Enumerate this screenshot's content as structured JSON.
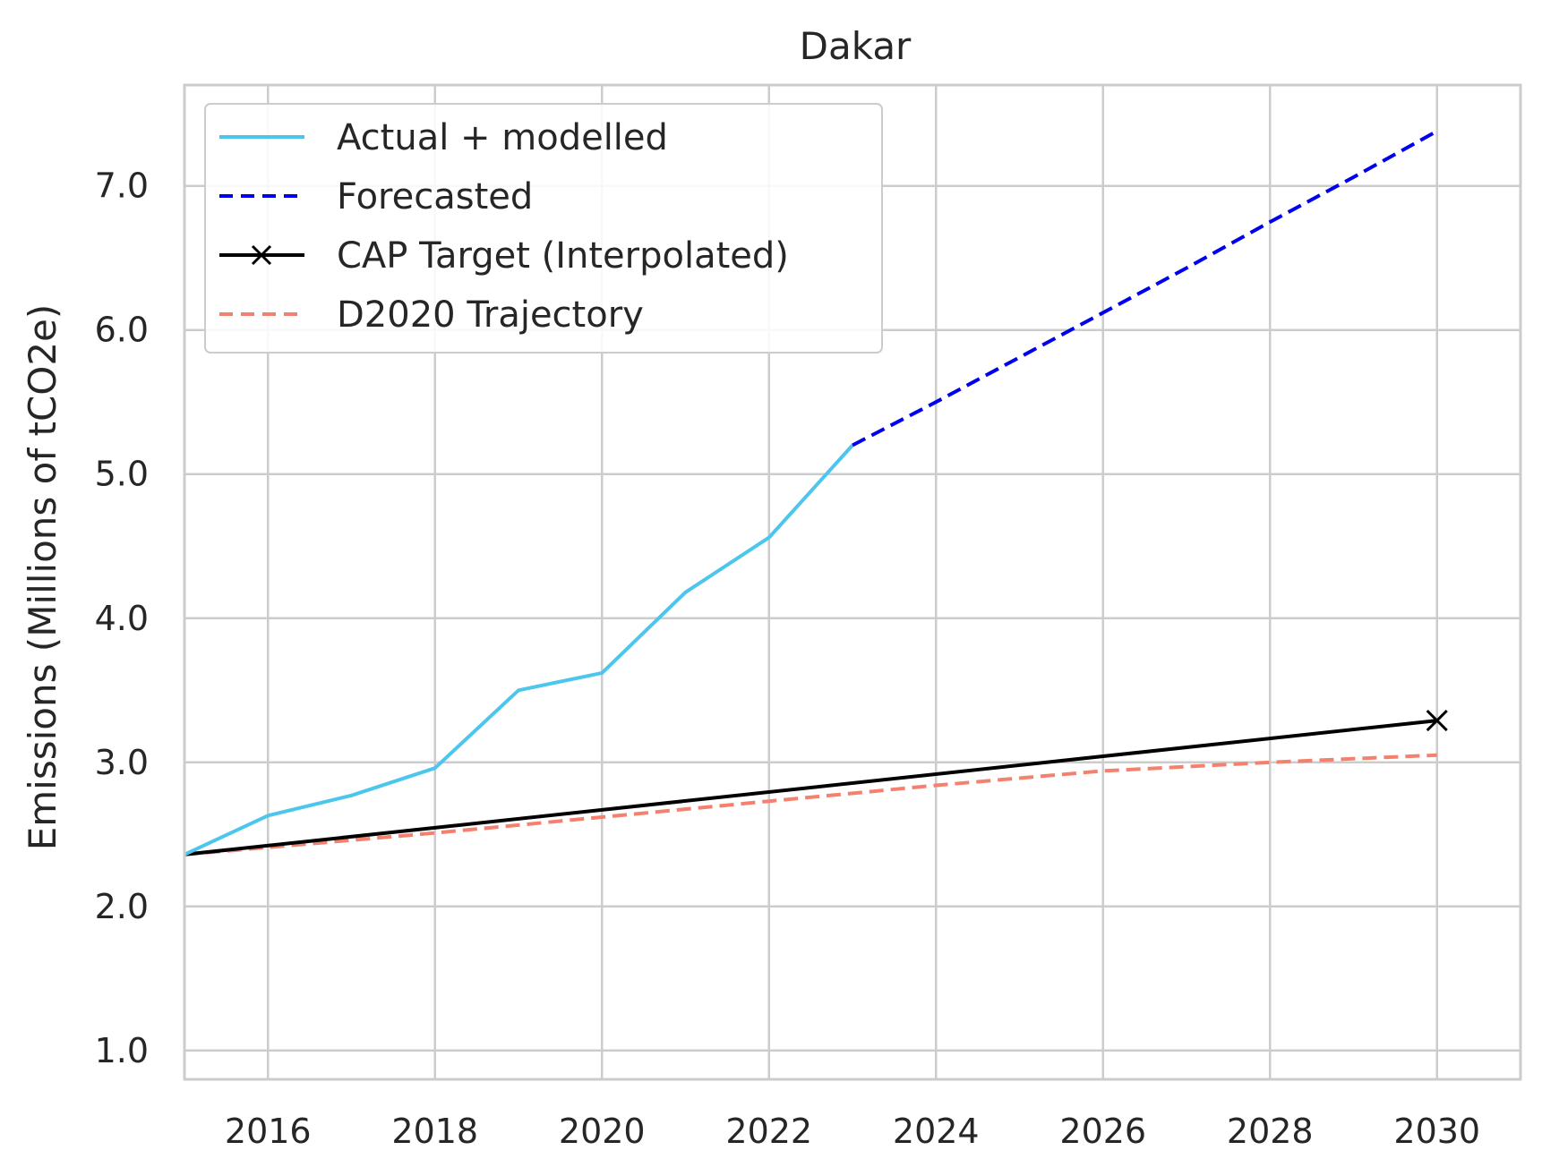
{
  "chart_data": {
    "type": "line",
    "title": "Dakar",
    "xlabel": "",
    "ylabel": "Emissions (Millions of tCO2e)",
    "xlim": [
      2015,
      2031
    ],
    "ylim": [
      0.8,
      7.7
    ],
    "xticks": [
      2016,
      2018,
      2020,
      2022,
      2024,
      2026,
      2028,
      2030
    ],
    "yticks": [
      1.0,
      2.0,
      3.0,
      4.0,
      5.0,
      6.0,
      7.0
    ],
    "xtick_labels": [
      "2016",
      "2018",
      "2020",
      "2022",
      "2024",
      "2026",
      "2028",
      "2030"
    ],
    "ytick_labels": [
      "1.0",
      "2.0",
      "3.0",
      "4.0",
      "5.0",
      "6.0",
      "7.0"
    ],
    "grid": true,
    "legend_position": "top-left",
    "series": [
      {
        "name": "Actual + modelled",
        "color": "#4cc6ec",
        "style": "solid",
        "marker": "none",
        "x": [
          2015,
          2016,
          2017,
          2018,
          2019,
          2020,
          2021,
          2022,
          2023
        ],
        "y": [
          2.36,
          2.63,
          2.77,
          2.96,
          3.5,
          3.62,
          4.18,
          4.56,
          5.2
        ]
      },
      {
        "name": "Forecasted",
        "color": "#0000ee",
        "style": "dashed",
        "marker": "none",
        "x": [
          2023,
          2024,
          2025,
          2026,
          2027,
          2028,
          2029,
          2030
        ],
        "y": [
          5.2,
          5.5,
          5.81,
          6.12,
          6.43,
          6.75,
          7.06,
          7.38
        ]
      },
      {
        "name": "CAP Target (Interpolated)",
        "color": "#000000",
        "style": "solid",
        "marker": "x-at-end",
        "x": [
          2015,
          2030
        ],
        "y": [
          2.36,
          3.29
        ]
      },
      {
        "name": "D2020 Trajectory",
        "color": "#f4806e",
        "style": "dashed",
        "marker": "none",
        "x": [
          2015,
          2016,
          2018,
          2020,
          2022,
          2024,
          2026,
          2028,
          2030
        ],
        "y": [
          2.36,
          2.41,
          2.51,
          2.62,
          2.73,
          2.84,
          2.94,
          3.0,
          3.05
        ]
      }
    ]
  }
}
